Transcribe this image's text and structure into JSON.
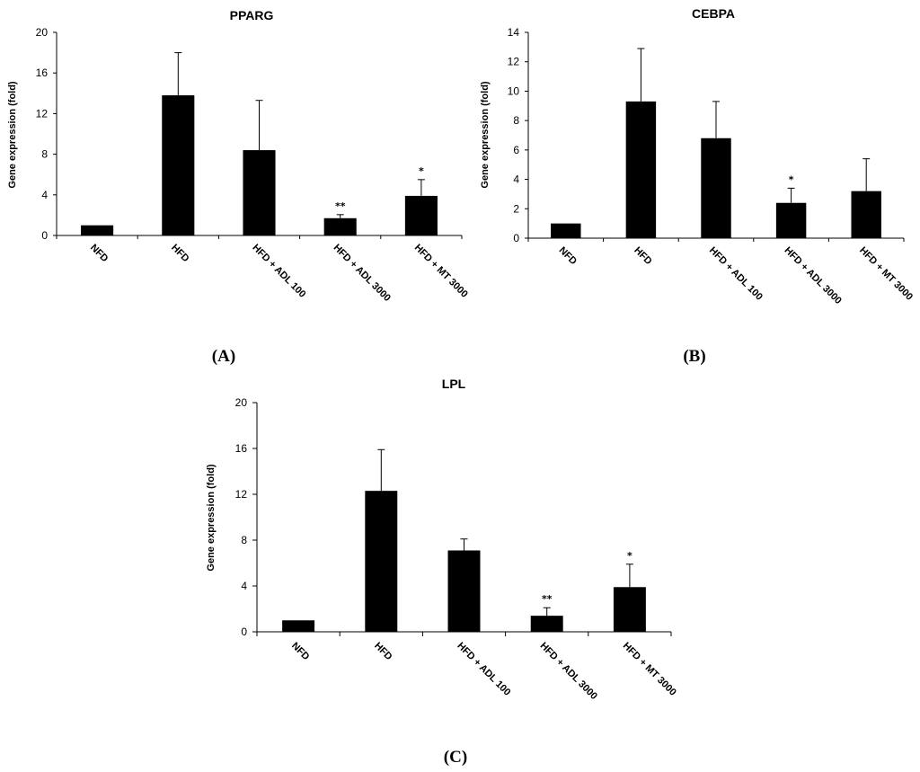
{
  "chart_data": [
    {
      "type": "bar",
      "panel_label": "(A)",
      "title": "PPARG",
      "ylabel": "Gene expression (fold)",
      "ylim": [
        0,
        20
      ],
      "yticks": [
        0,
        4,
        8,
        12,
        16,
        20
      ],
      "categories": [
        "NFD",
        "HFD",
        "HFD + ADL 100",
        "HFD + ADL 3000",
        "HFD + MT 3000"
      ],
      "values": [
        1.0,
        13.8,
        8.4,
        1.7,
        3.9
      ],
      "error_upper": [
        0.0,
        4.2,
        4.9,
        0.35,
        1.6
      ],
      "significance": [
        "",
        "",
        "",
        "**",
        "*"
      ]
    },
    {
      "type": "bar",
      "panel_label": "(B)",
      "title": "CEBPA",
      "ylabel": "Gene expression (fold)",
      "ylim": [
        0,
        14
      ],
      "yticks": [
        0,
        2,
        4,
        6,
        8,
        10,
        12,
        14
      ],
      "categories": [
        "NFD",
        "HFD",
        "HFD + ADL 100",
        "HFD + ADL 3000",
        "HFD + MT 3000"
      ],
      "values": [
        1.0,
        9.3,
        6.8,
        2.4,
        3.2
      ],
      "error_upper": [
        0.0,
        3.6,
        2.5,
        1.0,
        2.2
      ],
      "significance": [
        "",
        "",
        "",
        "*",
        ""
      ]
    },
    {
      "type": "bar",
      "panel_label": "(C)",
      "title": "LPL",
      "ylabel": "Gene expression (fold)",
      "ylim": [
        0,
        20
      ],
      "yticks": [
        0,
        4,
        8,
        12,
        16,
        20
      ],
      "categories": [
        "NFD",
        "HFD",
        "HFD + ADL 100",
        "HFD + ADL 3000",
        "HFD + MT 3000"
      ],
      "values": [
        1.0,
        12.3,
        7.1,
        1.4,
        3.9
      ],
      "error_upper": [
        0.0,
        3.6,
        1.0,
        0.7,
        2.0
      ],
      "significance": [
        "",
        "",
        "",
        "**",
        "*"
      ]
    }
  ]
}
